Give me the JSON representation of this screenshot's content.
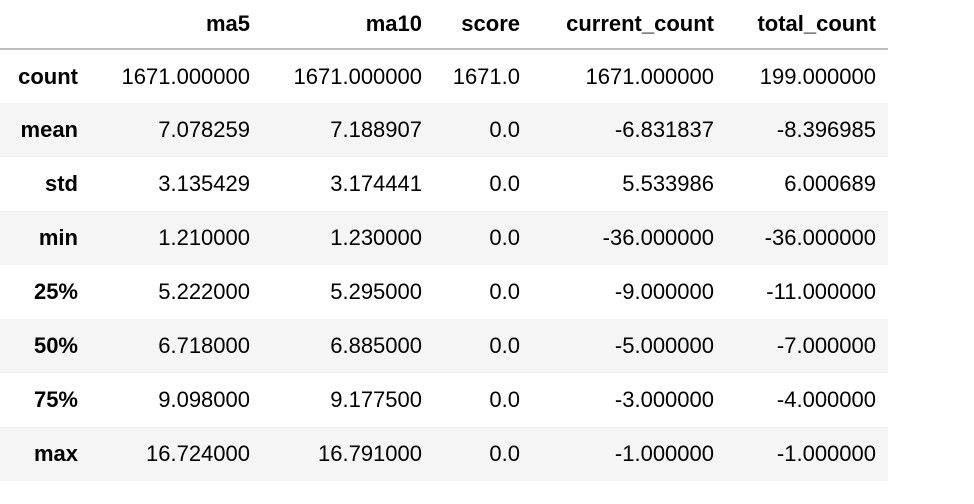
{
  "table": {
    "columns": [
      "",
      "ma5",
      "ma10",
      "score",
      "current_count",
      "total_count"
    ],
    "rows": [
      {
        "index": "count",
        "cells": [
          "1671.000000",
          "1671.000000",
          "1671.0",
          "1671.000000",
          "199.000000"
        ]
      },
      {
        "index": "mean",
        "cells": [
          "7.078259",
          "7.188907",
          "0.0",
          "-6.831837",
          "-8.396985"
        ]
      },
      {
        "index": "std",
        "cells": [
          "3.135429",
          "3.174441",
          "0.0",
          "5.533986",
          "6.000689"
        ]
      },
      {
        "index": "min",
        "cells": [
          "1.210000",
          "1.230000",
          "0.0",
          "-36.000000",
          "-36.000000"
        ]
      },
      {
        "index": "25%",
        "cells": [
          "5.222000",
          "5.295000",
          "0.0",
          "-9.000000",
          "-11.000000"
        ]
      },
      {
        "index": "50%",
        "cells": [
          "6.718000",
          "6.885000",
          "0.0",
          "-5.000000",
          "-7.000000"
        ]
      },
      {
        "index": "75%",
        "cells": [
          "9.098000",
          "9.177500",
          "0.0",
          "-3.000000",
          "-4.000000"
        ]
      },
      {
        "index": "max",
        "cells": [
          "16.724000",
          "16.791000",
          "0.0",
          "-1.000000",
          "-1.000000"
        ]
      }
    ]
  }
}
